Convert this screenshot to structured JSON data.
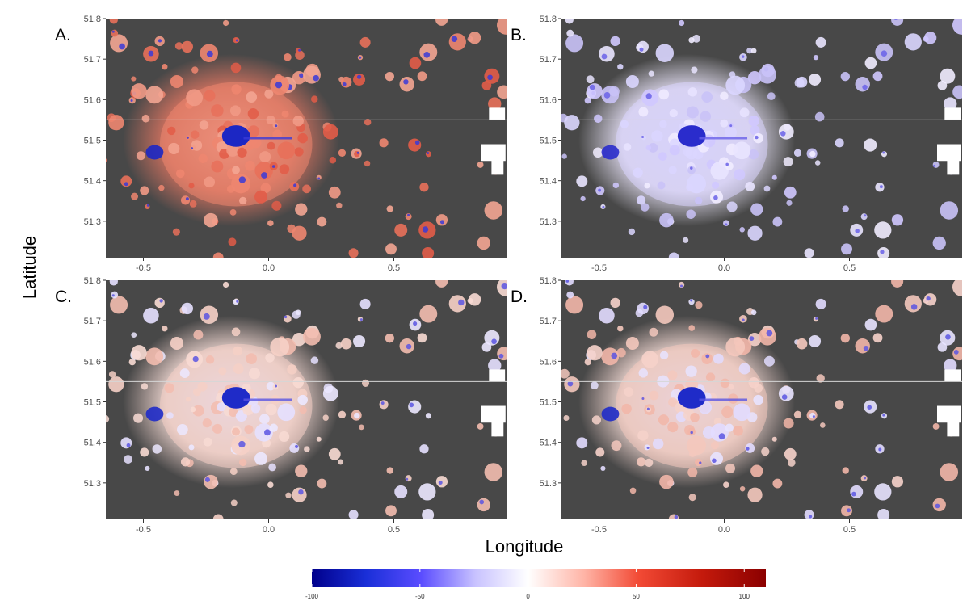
{
  "figure": {
    "xlabel": "Longitude",
    "ylabel": "Latitude",
    "colors": {
      "background": "#484848",
      "missing": "#ffffff",
      "negative": "#00008b",
      "mid": "#ffffff",
      "positive": "#8b0000"
    }
  },
  "panels": [
    {
      "id": "A",
      "label": "A."
    },
    {
      "id": "B",
      "label": "B."
    },
    {
      "id": "C",
      "label": "C."
    },
    {
      "id": "D",
      "label": "D."
    }
  ],
  "axes": {
    "xlim": [
      -0.65,
      0.95
    ],
    "ylim": [
      51.21,
      51.8
    ],
    "xticks": [
      -0.5,
      0.0,
      0.5
    ],
    "xtick_labels": [
      "-0.5",
      "0.0",
      "0.5"
    ],
    "yticks": [
      51.3,
      51.4,
      51.5,
      51.6,
      51.7,
      51.8
    ],
    "ytick_labels": [
      "51.3",
      "51.4",
      "51.5",
      "51.6",
      "51.7",
      "51.8"
    ]
  },
  "colorbar": {
    "range": [
      -100,
      110
    ],
    "ticks": [
      -100,
      -50,
      0,
      50,
      100
    ],
    "tick_labels": [
      "-100",
      "-50",
      "0",
      "50",
      "100"
    ]
  }
}
